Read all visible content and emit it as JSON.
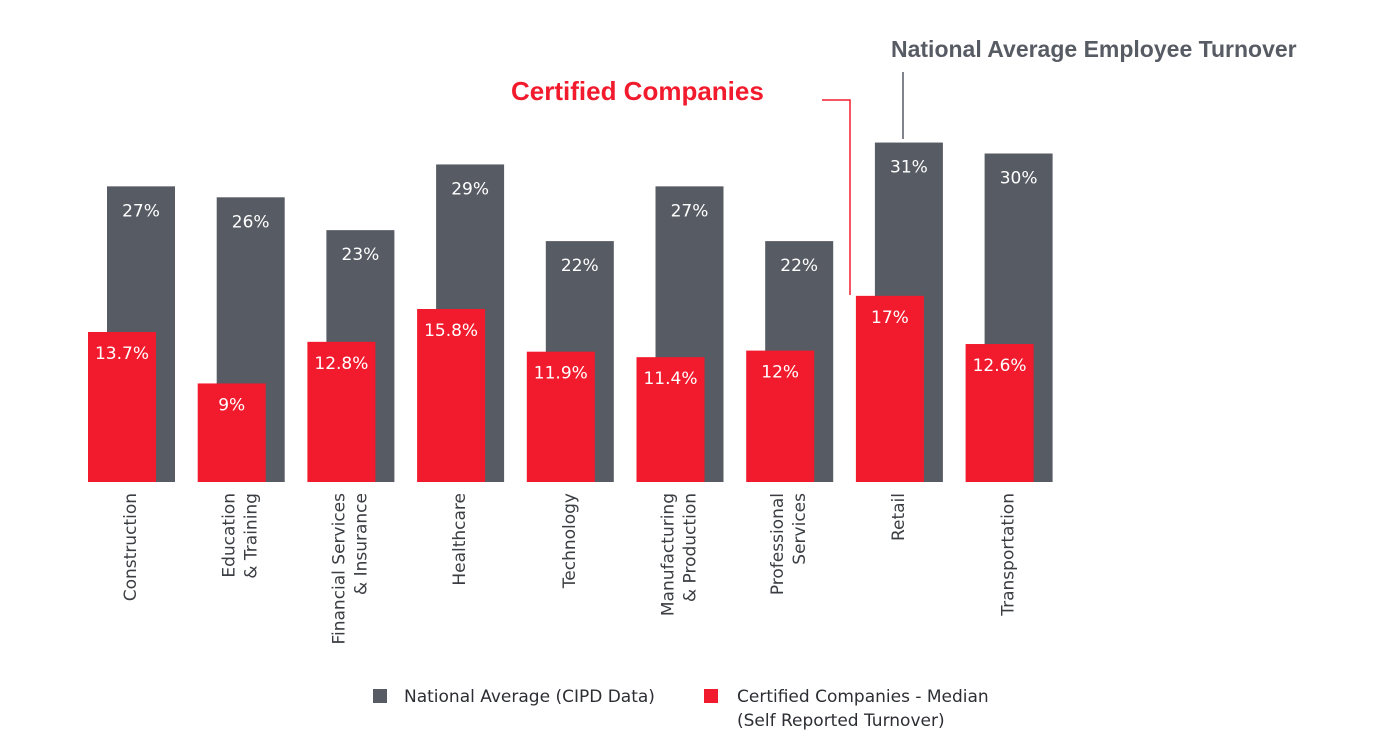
{
  "colors": {
    "national": "#575b63",
    "certified": "#f21b2d",
    "label_text": "#ffffff",
    "axis_text": "#3a3d42"
  },
  "callouts": {
    "certified": "Certified Companies",
    "national": "National Average Employee Turnover"
  },
  "legend": {
    "national": "National Average (CIPD Data)",
    "certified_line1": "Certified Companies - Median",
    "certified_line2": "(Self Reported Turnover)"
  },
  "chart_data": {
    "type": "bar",
    "categories": [
      [
        "Construction"
      ],
      [
        "Education",
        "& Training"
      ],
      [
        "Financial Services",
        "& Insurance"
      ],
      [
        "Healthcare"
      ],
      [
        "Technology"
      ],
      [
        "Manufacturing",
        "& Production"
      ],
      [
        "Professional",
        "Services"
      ],
      [
        "Retail"
      ],
      [
        "Transportation"
      ]
    ],
    "series": [
      {
        "name": "National Average (CIPD Data)",
        "values": [
          27,
          26,
          23,
          29,
          22,
          27,
          22,
          31,
          30
        ],
        "labels": [
          "27%",
          "26%",
          "23%",
          "29%",
          "22%",
          "27%",
          "22%",
          "31%",
          "30%"
        ]
      },
      {
        "name": "Certified Companies - Median (Self Reported Turnover)",
        "values": [
          13.7,
          9,
          12.8,
          15.8,
          11.9,
          11.4,
          12,
          17,
          12.6
        ],
        "labels": [
          "13.7%",
          "9%",
          "12.8%",
          "15.8%",
          "11.9%",
          "11.4%",
          "12%",
          "17%",
          "12.6%"
        ]
      }
    ],
    "ylim": [
      0,
      32
    ],
    "grid": false,
    "legend_position": "bottom",
    "value_labels": "inside-top"
  }
}
